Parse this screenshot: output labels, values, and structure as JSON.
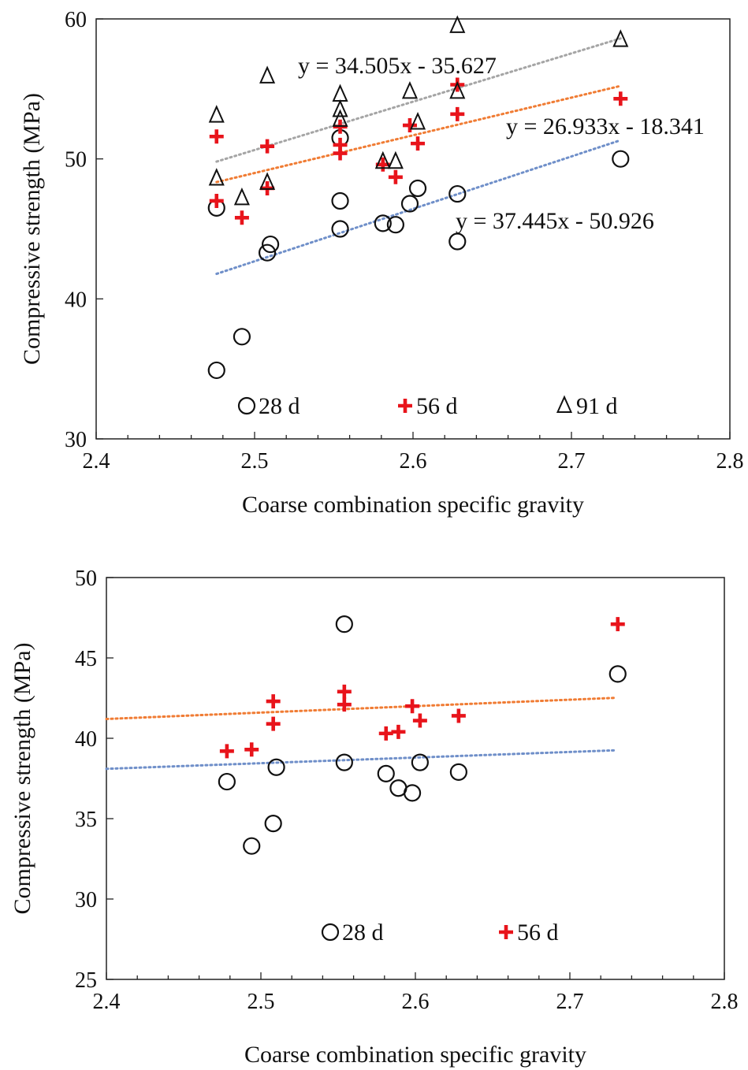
{
  "chart_data": [
    {
      "type": "scatter",
      "xlabel": "Coarse combination specific gravity",
      "ylabel": "Compressive strength (MPa)",
      "xlim": [
        2.4,
        2.8
      ],
      "ylim": [
        30,
        60
      ],
      "xticks": [
        "2.4",
        "2.5",
        "2.6",
        "2.7",
        "2.8"
      ],
      "yticks": [
        "30",
        "40",
        "50",
        "60"
      ],
      "grid": false,
      "legend_position": "bottom-inside",
      "series": [
        {
          "name": "28 d",
          "marker": "circle",
          "color": "#111111",
          "trend_color": "#6f8fc9",
          "x": [
            2.476,
            2.476,
            2.492,
            2.508,
            2.51,
            2.554,
            2.554,
            2.554,
            2.581,
            2.589,
            2.598,
            2.603,
            2.628,
            2.628,
            2.731
          ],
          "y": [
            34.9,
            46.5,
            37.3,
            43.3,
            43.9,
            51.5,
            47.0,
            45.0,
            45.4,
            45.3,
            46.8,
            47.9,
            47.5,
            44.1,
            50.0
          ],
          "trendline": {
            "equation": "y = 37.445x - 50.926",
            "x_range": [
              2.476,
              2.731
            ]
          }
        },
        {
          "name": "56 d",
          "marker": "cross",
          "color": "#e8141b",
          "trend_color": "#f07c34",
          "x": [
            2.476,
            2.476,
            2.492,
            2.508,
            2.508,
            2.554,
            2.554,
            2.554,
            2.581,
            2.589,
            2.598,
            2.603,
            2.628,
            2.628,
            2.731
          ],
          "y": [
            51.6,
            47.0,
            45.8,
            50.9,
            47.9,
            52.3,
            51.0,
            50.4,
            49.6,
            48.7,
            52.4,
            51.1,
            55.3,
            53.2,
            54.3
          ],
          "trendline": {
            "equation": "y = 26.933x - 18.341",
            "x_range": [
              2.476,
              2.731
            ]
          }
        },
        {
          "name": "91 d",
          "marker": "triangle",
          "color": "#111111",
          "trend_color": "#a5a5a5",
          "x": [
            2.476,
            2.476,
            2.492,
            2.508,
            2.508,
            2.554,
            2.554,
            2.554,
            2.581,
            2.589,
            2.598,
            2.603,
            2.628,
            2.628,
            2.731
          ],
          "y": [
            53.1,
            48.6,
            47.2,
            55.9,
            48.3,
            54.6,
            53.5,
            52.8,
            49.8,
            49.8,
            54.8,
            52.6,
            59.5,
            54.8,
            58.5
          ],
          "trendline": {
            "equation": "y = 34.505x - 35.627",
            "x_range": [
              2.476,
              2.731
            ]
          }
        }
      ]
    },
    {
      "type": "scatter",
      "xlabel": "Coarse combination specific gravity",
      "ylabel": "Compressive strength (MPa)",
      "xlim": [
        2.4,
        2.8
      ],
      "ylim": [
        25,
        50
      ],
      "xticks": [
        "2.4",
        "2.5",
        "2.6",
        "2.7",
        "2.8"
      ],
      "yticks": [
        "25",
        "30",
        "35",
        "40",
        "45",
        "50"
      ],
      "grid": false,
      "legend_position": "bottom-inside",
      "series": [
        {
          "name": "28 d",
          "marker": "circle",
          "color": "#111111",
          "trend_color": "#6f8fc9",
          "x": [
            2.478,
            2.494,
            2.508,
            2.51,
            2.554,
            2.554,
            2.581,
            2.589,
            2.598,
            2.603,
            2.628,
            2.731
          ],
          "y": [
            37.3,
            33.3,
            34.7,
            38.2,
            47.1,
            38.5,
            37.8,
            36.9,
            36.6,
            38.5,
            37.9,
            44.0
          ],
          "trendline": {
            "equation": "",
            "x_range": [
              2.4,
              2.73
            ],
            "slope": 3.5,
            "intercept": 29.7
          }
        },
        {
          "name": "56 d",
          "marker": "cross",
          "color": "#e8141b",
          "trend_color": "#f07c34",
          "x": [
            2.478,
            2.494,
            2.508,
            2.508,
            2.554,
            2.554,
            2.581,
            2.589,
            2.598,
            2.603,
            2.628,
            2.731
          ],
          "y": [
            39.2,
            39.3,
            42.3,
            40.9,
            42.9,
            42.1,
            40.3,
            40.4,
            42.0,
            41.1,
            41.4,
            47.1
          ],
          "trendline": {
            "equation": "",
            "x_range": [
              2.4,
              2.73
            ],
            "slope": 4.0,
            "intercept": 31.6
          }
        }
      ]
    }
  ]
}
